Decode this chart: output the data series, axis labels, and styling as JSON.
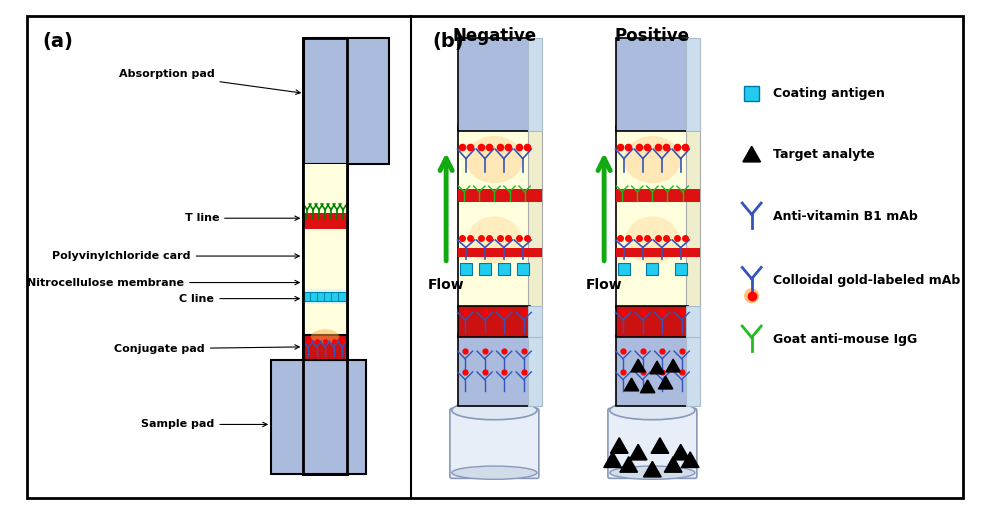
{
  "fig_width": 9.93,
  "fig_height": 5.14,
  "bg_color": "#ffffff",
  "border_color": "#000000",
  "label_a": "(a)",
  "label_b": "(b)",
  "blue_pad_color": "#aabbdd",
  "membrane_color": "#ffffdd",
  "red_line_color": "#dd1111",
  "red_conj_color": "#cc1111",
  "cyan_diamond_color": "#22ccee",
  "green_antibody_color": "#22bb22",
  "blue_antibody_color": "#3355bb",
  "orange_glow_color": "#ffaa44",
  "arrow_green": "#11aa11",
  "neg_title": "Negative",
  "pos_title": "Positive",
  "flow_text": "Flow"
}
